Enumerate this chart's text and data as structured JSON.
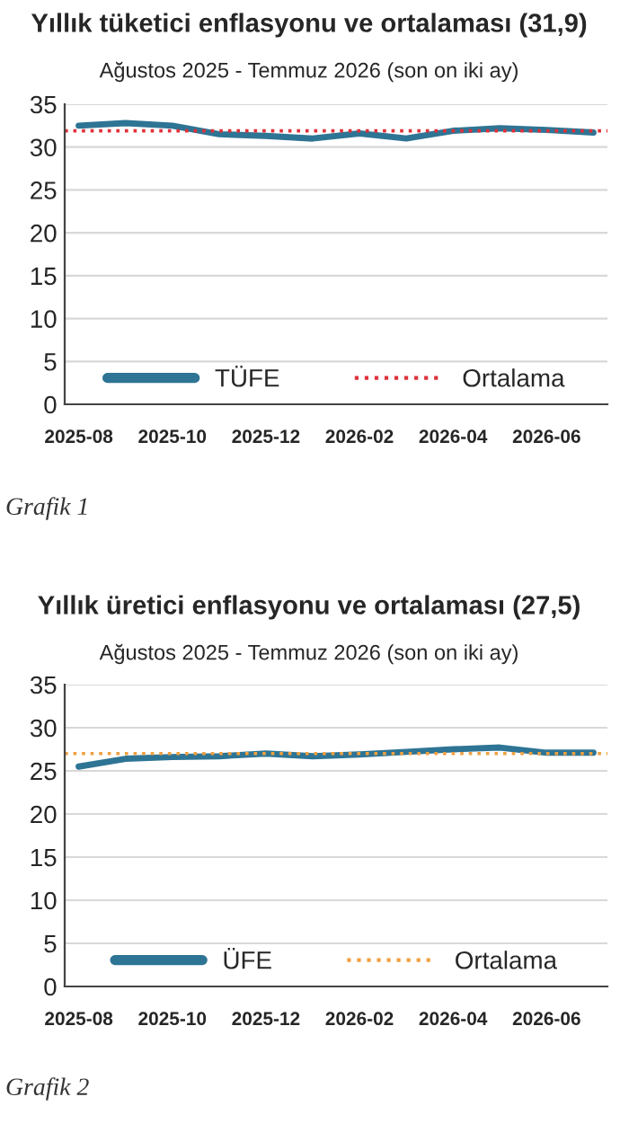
{
  "chart_data": [
    {
      "type": "line",
      "title": "Yıllık tüketici enflasyonu ve ortalaması (31,9)",
      "subtitle": "Ağustos 2025 - Temmuz 2026 (son on iki ay)",
      "categories": [
        "2025-08",
        null,
        "2025-10",
        null,
        "2025-12",
        null,
        "2026-02",
        null,
        "2026-04",
        null,
        "2026-06",
        null
      ],
      "series": [
        {
          "name": "TÜFE",
          "color": "#2e7494",
          "values": [
            32.5,
            32.8,
            32.5,
            31.5,
            31.3,
            31.0,
            31.6,
            31.0,
            31.9,
            32.2,
            32.0,
            31.7
          ]
        }
      ],
      "ref_lines": [
        {
          "axis": "y",
          "value": 31.9,
          "label": "Ortalama",
          "color": "#e0303a",
          "line_style": "dotted"
        }
      ],
      "ylim": [
        0,
        35
      ],
      "yticks": [
        0,
        5,
        10,
        15,
        20,
        25,
        30,
        35
      ],
      "grid": "y",
      "legend": "bottom",
      "annotations": [
        "Grafik 1"
      ]
    },
    {
      "type": "line",
      "title": "Yıllık üretici enflasyonu ve ortalaması (27,5)",
      "subtitle": "Ağustos 2025 - Temmuz 2026 (son on iki ay)",
      "categories": [
        "2025-08",
        null,
        "2025-10",
        null,
        "2025-12",
        null,
        "2026-02",
        null,
        "2026-04",
        null,
        "2026-06",
        null
      ],
      "series": [
        {
          "name": "ÜFE",
          "color": "#2e7494",
          "values": [
            25.5,
            26.4,
            26.6,
            26.7,
            27.0,
            26.7,
            26.9,
            27.2,
            27.5,
            27.7,
            27.1,
            27.1
          ]
        }
      ],
      "ref_lines": [
        {
          "axis": "y",
          "value": 27.0,
          "label": "Ortalama",
          "color": "#f0a040",
          "line_style": "dotted"
        }
      ],
      "ylim": [
        0,
        35
      ],
      "yticks": [
        0,
        5,
        10,
        15,
        20,
        25,
        30,
        35
      ],
      "grid": "y",
      "legend": "bottom",
      "annotations": [
        "Grafik 2"
      ]
    }
  ]
}
